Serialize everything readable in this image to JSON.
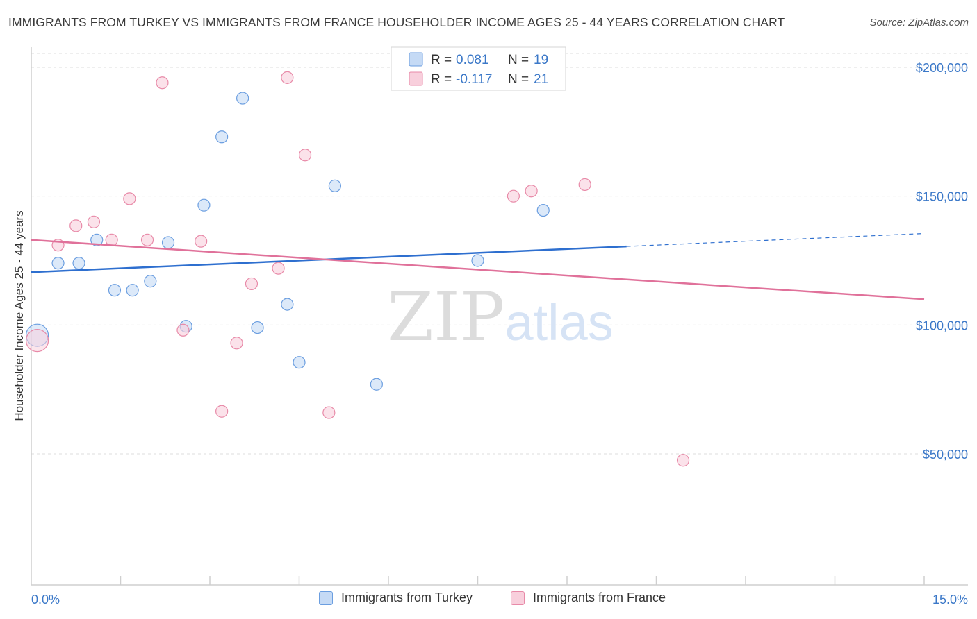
{
  "chart_data": {
    "type": "scatter",
    "title": "IMMIGRANTS FROM TURKEY VS IMMIGRANTS FROM FRANCE HOUSEHOLDER INCOME AGES 25 - 44 YEARS CORRELATION CHART",
    "source": "Source: ZipAtlas.com",
    "ylabel": "Householder Income Ages 25 - 44 years",
    "xlabel": "",
    "xlim": [
      0,
      15
    ],
    "ylim": [
      5000,
      210000
    ],
    "x_tick_labels": {
      "left": "0.0%",
      "right": "15.0%"
    },
    "y_ticks": [
      {
        "value": 200000,
        "label": "$200,000"
      },
      {
        "value": 150000,
        "label": "$150,000"
      },
      {
        "value": 100000,
        "label": "$100,000"
      },
      {
        "value": 50000,
        "label": "$50,000"
      }
    ],
    "grid": true,
    "legend_position": "top-center",
    "watermark": {
      "zip": "ZIP",
      "atlas": "atlas"
    },
    "series": [
      {
        "name": "Immigrants from Turkey",
        "color": "#6b9ee0",
        "fill": "#c5daf5",
        "line_color": "#2e6fcf",
        "r_label": "R =",
        "r_value": "0.081",
        "n_label": "N =",
        "n_value": "19",
        "trend": {
          "x0": 0,
          "y0": 120500,
          "x1": 10.0,
          "y1": 130500,
          "dash_x1": 15,
          "dash_y1": 135500
        },
        "points": [
          {
            "x": 0.1,
            "y": 96000,
            "big": true
          },
          {
            "x": 0.45,
            "y": 124000
          },
          {
            "x": 0.8,
            "y": 124000
          },
          {
            "x": 1.1,
            "y": 133000
          },
          {
            "x": 1.4,
            "y": 113500
          },
          {
            "x": 1.7,
            "y": 113500
          },
          {
            "x": 2.0,
            "y": 117000
          },
          {
            "x": 2.3,
            "y": 132000
          },
          {
            "x": 2.6,
            "y": 99500
          },
          {
            "x": 2.9,
            "y": 146500
          },
          {
            "x": 3.2,
            "y": 173000
          },
          {
            "x": 3.55,
            "y": 188000
          },
          {
            "x": 3.8,
            "y": 99000
          },
          {
            "x": 4.3,
            "y": 108000
          },
          {
            "x": 4.5,
            "y": 85500
          },
          {
            "x": 5.1,
            "y": 154000
          },
          {
            "x": 5.8,
            "y": 77000
          },
          {
            "x": 7.5,
            "y": 125000
          },
          {
            "x": 8.6,
            "y": 144500
          }
        ]
      },
      {
        "name": "Immigrants from France",
        "color": "#e88aa8",
        "fill": "#f8cfdc",
        "line_color": "#e0719a",
        "r_label": "R =",
        "r_value": "-0.117",
        "n_label": "N =",
        "n_value": "21",
        "trend": {
          "x0": 0,
          "y0": 133000,
          "x1": 15,
          "y1": 110000
        },
        "points": [
          {
            "x": 0.1,
            "y": 94000,
            "big": true
          },
          {
            "x": 0.45,
            "y": 131000
          },
          {
            "x": 0.75,
            "y": 138500
          },
          {
            "x": 1.05,
            "y": 140000
          },
          {
            "x": 1.35,
            "y": 133000
          },
          {
            "x": 1.65,
            "y": 149000
          },
          {
            "x": 1.95,
            "y": 133000
          },
          {
            "x": 2.2,
            "y": 194000
          },
          {
            "x": 2.55,
            "y": 98000
          },
          {
            "x": 2.85,
            "y": 132500
          },
          {
            "x": 3.2,
            "y": 66500
          },
          {
            "x": 3.45,
            "y": 93000
          },
          {
            "x": 3.7,
            "y": 116000
          },
          {
            "x": 4.15,
            "y": 122000
          },
          {
            "x": 4.3,
            "y": 196000
          },
          {
            "x": 4.6,
            "y": 166000
          },
          {
            "x": 5.0,
            "y": 66000
          },
          {
            "x": 8.1,
            "y": 150000
          },
          {
            "x": 8.4,
            "y": 152000
          },
          {
            "x": 9.3,
            "y": 154500
          },
          {
            "x": 10.95,
            "y": 47500
          }
        ]
      }
    ]
  }
}
